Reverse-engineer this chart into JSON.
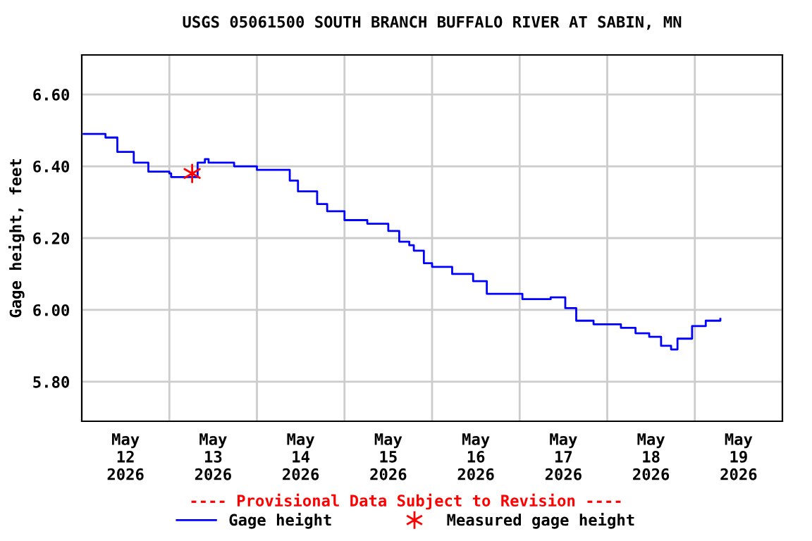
{
  "chart_data": {
    "type": "step",
    "title": "USGS 05061500 SOUTH BRANCH BUFFALO RIVER AT SABIN, MN",
    "ylabel": "Gage height, feet",
    "series": [
      {
        "name": "Gage height",
        "color": "#0000ff",
        "marker": "none",
        "x": [
          "2026-05-12T00:30",
          "2026-05-12T03:00",
          "2026-05-12T06:30",
          "2026-05-12T09:45",
          "2026-05-12T14:15",
          "2026-05-12T18:15",
          "2026-05-13T00:00",
          "2026-05-13T00:30",
          "2026-05-13T06:30",
          "2026-05-13T07:45",
          "2026-05-13T09:45",
          "2026-05-13T10:45",
          "2026-05-13T17:30",
          "2026-05-13T17:45",
          "2026-05-14T00:00",
          "2026-05-14T05:45",
          "2026-05-14T09:00",
          "2026-05-14T11:15",
          "2026-05-14T16:30",
          "2026-05-14T19:15",
          "2026-05-15T00:00",
          "2026-05-15T06:15",
          "2026-05-15T12:00",
          "2026-05-15T15:00",
          "2026-05-15T17:45",
          "2026-05-15T19:00",
          "2026-05-15T21:45",
          "2026-05-16T00:00",
          "2026-05-16T05:30",
          "2026-05-16T11:15",
          "2026-05-16T15:00",
          "2026-05-17T00:45",
          "2026-05-17T08:30",
          "2026-05-17T12:30",
          "2026-05-17T15:30",
          "2026-05-17T20:15",
          "2026-05-18T03:45",
          "2026-05-18T07:45",
          "2026-05-18T11:30",
          "2026-05-18T14:45",
          "2026-05-18T17:30",
          "2026-05-18T19:15",
          "2026-05-18T23:15",
          "2026-05-19T03:00",
          "2026-05-19T07:00"
        ],
        "values": [
          6.49,
          6.49,
          6.48,
          6.44,
          6.41,
          6.385,
          6.38,
          6.37,
          6.37,
          6.41,
          6.42,
          6.41,
          6.41,
          6.4,
          6.39,
          6.39,
          6.36,
          6.33,
          6.295,
          6.275,
          6.25,
          6.24,
          6.22,
          6.19,
          6.18,
          6.165,
          6.13,
          6.12,
          6.1,
          6.08,
          6.045,
          6.03,
          6.035,
          6.005,
          5.97,
          5.96,
          5.95,
          5.935,
          5.925,
          5.9,
          5.89,
          5.92,
          5.955,
          5.97,
          5.975
        ]
      },
      {
        "name": "Measured gage height",
        "color": "#ff0000",
        "type": "scatter",
        "marker": "cross",
        "x": [
          "2026-05-13T06:15"
        ],
        "values": [
          6.38
        ]
      }
    ],
    "xlim": [
      "2026-05-12T00:00",
      "2026-05-20T00:00"
    ],
    "xticks": [
      {
        "value": "2026-05-12T12:00",
        "label": "May\n12\n2026"
      },
      {
        "value": "2026-05-13T00:00",
        "label": null
      },
      {
        "value": "2026-05-13T12:00",
        "label": "May\n13\n2026"
      },
      {
        "value": "2026-05-14T00:00",
        "label": null
      },
      {
        "value": "2026-05-14T12:00",
        "label": "May\n14\n2026"
      },
      {
        "value": "2026-05-15T00:00",
        "label": null
      },
      {
        "value": "2026-05-15T12:00",
        "label": "May\n15\n2026"
      },
      {
        "value": "2026-05-16T00:00",
        "label": null
      },
      {
        "value": "2026-05-16T12:00",
        "label": "May\n16\n2026"
      },
      {
        "value": "2026-05-17T00:00",
        "label": null
      },
      {
        "value": "2026-05-17T12:00",
        "label": "May\n17\n2026"
      },
      {
        "value": "2026-05-18T00:00",
        "label": null
      },
      {
        "value": "2026-05-18T12:00",
        "label": "May\n18\n2026"
      },
      {
        "value": "2026-05-19T00:00",
        "label": null
      },
      {
        "value": "2026-05-19T12:00",
        "label": "May\n19\n2026"
      }
    ],
    "ylim": [
      5.69,
      6.71
    ],
    "yticks": [
      {
        "value": 5.8,
        "label": "5.80"
      },
      {
        "value": 6.0,
        "label": "6.00"
      },
      {
        "value": 6.2,
        "label": "6.20"
      },
      {
        "value": 6.4,
        "label": "6.40"
      },
      {
        "value": 6.6,
        "label": "6.60"
      }
    ],
    "grid": true,
    "legend": "bottom",
    "annotations": [
      "---- Provisional Data Subject to Revision ----"
    ]
  }
}
